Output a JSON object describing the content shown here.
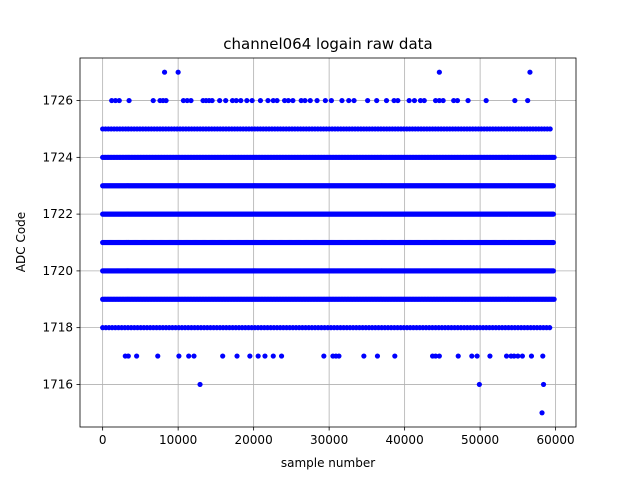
{
  "chart_data": {
    "type": "scatter",
    "title": "channel064 logain raw data",
    "xlabel": "sample number",
    "ylabel": "ADC Code",
    "xlim": [
      -3000,
      62700
    ],
    "ylim": [
      1714.5,
      1727.5
    ],
    "xticks": [
      0,
      10000,
      20000,
      30000,
      40000,
      50000,
      60000
    ],
    "yticks": [
      1716,
      1718,
      1720,
      1722,
      1724,
      1726
    ],
    "grid": true,
    "marker_color": "#0000ff",
    "series": [
      {
        "dense_levels": [
          {
            "y": 1725,
            "x_start": 0,
            "x_end": 59500,
            "step": 380
          },
          {
            "y": 1724,
            "x_start": 0,
            "x_end": 59800,
            "step": 200
          },
          {
            "y": 1723,
            "x_start": 0,
            "x_end": 59800,
            "step": 150
          },
          {
            "y": 1722,
            "x_start": 0,
            "x_end": 59800,
            "step": 150
          },
          {
            "y": 1721,
            "x_start": 0,
            "x_end": 59800,
            "step": 150
          },
          {
            "y": 1720,
            "x_start": 0,
            "x_end": 59800,
            "step": 150
          },
          {
            "y": 1719,
            "x_start": 0,
            "x_end": 59800,
            "step": 200
          },
          {
            "y": 1718,
            "x_start": 0,
            "x_end": 59500,
            "step": 420
          }
        ],
        "points": [
          {
            "x": 8200,
            "y": 1727
          },
          {
            "x": 10000,
            "y": 1727
          },
          {
            "x": 44600,
            "y": 1727
          },
          {
            "x": 56600,
            "y": 1727
          },
          {
            "x": 1200,
            "y": 1726
          },
          {
            "x": 1700,
            "y": 1726
          },
          {
            "x": 2200,
            "y": 1726
          },
          {
            "x": 3500,
            "y": 1726
          },
          {
            "x": 6700,
            "y": 1726
          },
          {
            "x": 7600,
            "y": 1726
          },
          {
            "x": 8000,
            "y": 1726
          },
          {
            "x": 8400,
            "y": 1726
          },
          {
            "x": 10700,
            "y": 1726
          },
          {
            "x": 11200,
            "y": 1726
          },
          {
            "x": 11700,
            "y": 1726
          },
          {
            "x": 13300,
            "y": 1726
          },
          {
            "x": 13700,
            "y": 1726
          },
          {
            "x": 14100,
            "y": 1726
          },
          {
            "x": 14500,
            "y": 1726
          },
          {
            "x": 15500,
            "y": 1726
          },
          {
            "x": 16300,
            "y": 1726
          },
          {
            "x": 17200,
            "y": 1726
          },
          {
            "x": 17700,
            "y": 1726
          },
          {
            "x": 18300,
            "y": 1726
          },
          {
            "x": 19100,
            "y": 1726
          },
          {
            "x": 19800,
            "y": 1726
          },
          {
            "x": 20900,
            "y": 1726
          },
          {
            "x": 21900,
            "y": 1726
          },
          {
            "x": 22600,
            "y": 1726
          },
          {
            "x": 23100,
            "y": 1726
          },
          {
            "x": 24100,
            "y": 1726
          },
          {
            "x": 24600,
            "y": 1726
          },
          {
            "x": 25200,
            "y": 1726
          },
          {
            "x": 26300,
            "y": 1726
          },
          {
            "x": 26800,
            "y": 1726
          },
          {
            "x": 27500,
            "y": 1726
          },
          {
            "x": 28400,
            "y": 1726
          },
          {
            "x": 29500,
            "y": 1726
          },
          {
            "x": 30300,
            "y": 1726
          },
          {
            "x": 31700,
            "y": 1726
          },
          {
            "x": 32600,
            "y": 1726
          },
          {
            "x": 33300,
            "y": 1726
          },
          {
            "x": 35100,
            "y": 1726
          },
          {
            "x": 36300,
            "y": 1726
          },
          {
            "x": 37600,
            "y": 1726
          },
          {
            "x": 38600,
            "y": 1726
          },
          {
            "x": 39100,
            "y": 1726
          },
          {
            "x": 40600,
            "y": 1726
          },
          {
            "x": 41300,
            "y": 1726
          },
          {
            "x": 42100,
            "y": 1726
          },
          {
            "x": 42600,
            "y": 1726
          },
          {
            "x": 44100,
            "y": 1726
          },
          {
            "x": 44600,
            "y": 1726
          },
          {
            "x": 45100,
            "y": 1726
          },
          {
            "x": 46500,
            "y": 1726
          },
          {
            "x": 47000,
            "y": 1726
          },
          {
            "x": 48400,
            "y": 1726
          },
          {
            "x": 50800,
            "y": 1726
          },
          {
            "x": 54600,
            "y": 1726
          },
          {
            "x": 56300,
            "y": 1726
          },
          {
            "x": 3000,
            "y": 1717
          },
          {
            "x": 3400,
            "y": 1717
          },
          {
            "x": 4500,
            "y": 1717
          },
          {
            "x": 7300,
            "y": 1717
          },
          {
            "x": 10100,
            "y": 1717
          },
          {
            "x": 11400,
            "y": 1717
          },
          {
            "x": 12100,
            "y": 1717
          },
          {
            "x": 15900,
            "y": 1717
          },
          {
            "x": 17800,
            "y": 1717
          },
          {
            "x": 19500,
            "y": 1717
          },
          {
            "x": 20600,
            "y": 1717
          },
          {
            "x": 21500,
            "y": 1717
          },
          {
            "x": 22600,
            "y": 1717
          },
          {
            "x": 23700,
            "y": 1717
          },
          {
            "x": 29300,
            "y": 1717
          },
          {
            "x": 30500,
            "y": 1717
          },
          {
            "x": 30900,
            "y": 1717
          },
          {
            "x": 31300,
            "y": 1717
          },
          {
            "x": 34600,
            "y": 1717
          },
          {
            "x": 36400,
            "y": 1717
          },
          {
            "x": 38700,
            "y": 1717
          },
          {
            "x": 43700,
            "y": 1717
          },
          {
            "x": 44100,
            "y": 1717
          },
          {
            "x": 44600,
            "y": 1717
          },
          {
            "x": 47100,
            "y": 1717
          },
          {
            "x": 48900,
            "y": 1717
          },
          {
            "x": 49600,
            "y": 1717
          },
          {
            "x": 51300,
            "y": 1717
          },
          {
            "x": 53500,
            "y": 1717
          },
          {
            "x": 54100,
            "y": 1717
          },
          {
            "x": 54500,
            "y": 1717
          },
          {
            "x": 55000,
            "y": 1717
          },
          {
            "x": 55600,
            "y": 1717
          },
          {
            "x": 56800,
            "y": 1717
          },
          {
            "x": 58300,
            "y": 1717
          },
          {
            "x": 12900,
            "y": 1716
          },
          {
            "x": 49900,
            "y": 1716
          },
          {
            "x": 58400,
            "y": 1716
          },
          {
            "x": 58200,
            "y": 1715
          }
        ]
      }
    ]
  }
}
